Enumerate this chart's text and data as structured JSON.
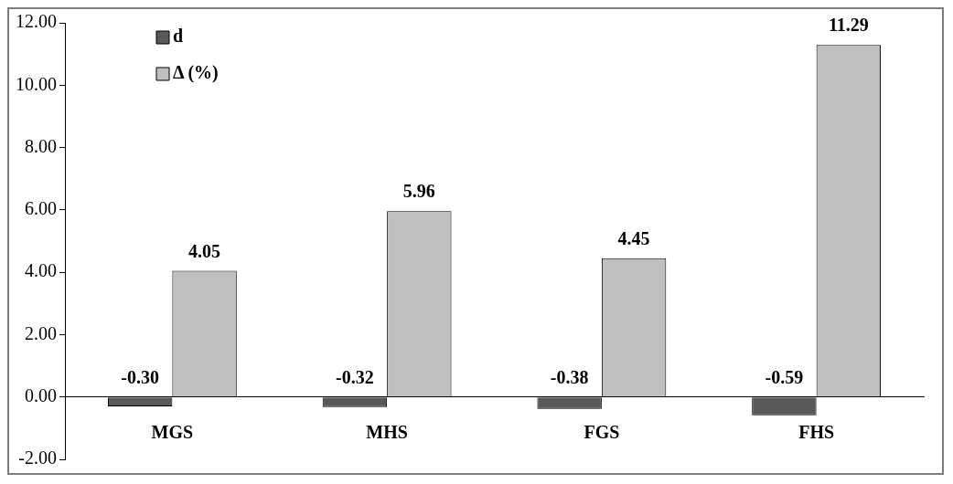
{
  "chart_data": {
    "type": "bar",
    "categories": [
      "MGS",
      "MHS",
      "FGS",
      "FHS"
    ],
    "series": [
      {
        "name": "d",
        "color": "#595959",
        "values": [
          -0.3,
          -0.32,
          -0.38,
          -0.59
        ],
        "value_labels": [
          "-0.30",
          "-0.32",
          "-0.38",
          "-0.59"
        ]
      },
      {
        "name": "Δ (%)",
        "color": "#bfbfbf",
        "values": [
          4.05,
          5.96,
          4.45,
          11.29
        ],
        "value_labels": [
          "4.05",
          "5.96",
          "4.45",
          "11.29"
        ]
      }
    ],
    "ylim": [
      -2,
      12
    ],
    "yticks": [
      {
        "value": -2,
        "label": "-2.00"
      },
      {
        "value": 0,
        "label": "0.00"
      },
      {
        "value": 2,
        "label": "2.00"
      },
      {
        "value": 4,
        "label": "4.00"
      },
      {
        "value": 6,
        "label": "6.00"
      },
      {
        "value": 8,
        "label": "8.00"
      },
      {
        "value": 10,
        "label": "10.00"
      },
      {
        "value": 12,
        "label": "12.00"
      }
    ],
    "grid": false,
    "legend": "top left"
  }
}
